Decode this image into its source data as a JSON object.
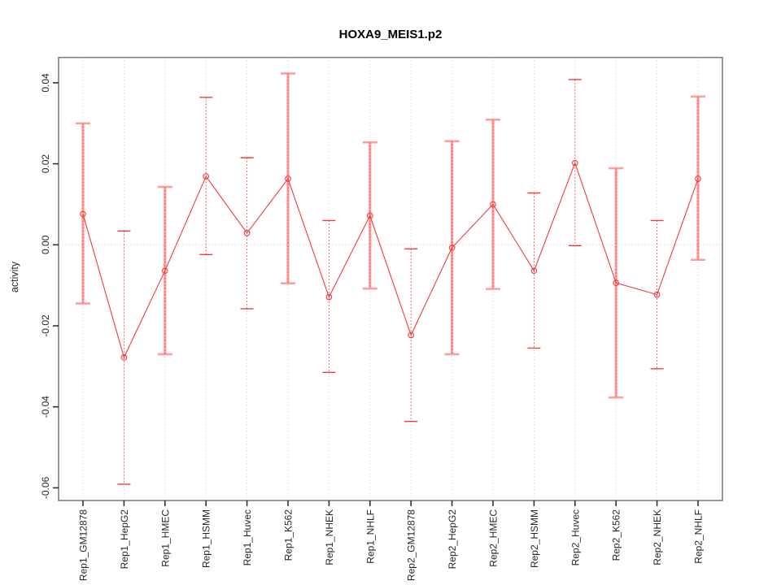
{
  "title": "HOXA9_MEIS1.p2",
  "colors": {
    "series_red": "#f23b3b",
    "pale_bar": "#ff9e9e",
    "grid": "#cbcbcb",
    "frame": "#7f7f7f",
    "tick": "#333333",
    "text": "#262626",
    "title_text": "#000000",
    "background": "#ffffff"
  },
  "chart_data": {
    "type": "line",
    "title": "HOXA9_MEIS1.p2",
    "xlabel": "",
    "ylabel": "activity",
    "legend": "none",
    "grid": "vertical dotted gridlines at each category; dotted horizontal line at y=0",
    "point_style": "open red circles connected by red line, with error bars",
    "categories": [
      "Rep1_GM12878",
      "Rep1_HepG2",
      "Rep1_HMEC",
      "Rep1_HSMM",
      "Rep1_Huvec",
      "Rep1_K562",
      "Rep1_NHEK",
      "Rep1_NHLF",
      "Rep2_GM12878",
      "Rep2_HepG2",
      "Rep2_HMEC",
      "Rep2_HSMM",
      "Rep2_Huvec",
      "Rep2_K562",
      "Rep2_NHEK",
      "Rep2_NHLF"
    ],
    "series": [
      {
        "name": "activity",
        "values": [
          0.0076,
          -0.0278,
          -0.0064,
          0.0169,
          0.0029,
          0.0163,
          -0.0129,
          0.0072,
          -0.0223,
          -0.0007,
          0.01,
          -0.0064,
          0.0202,
          -0.0094,
          -0.0123,
          0.0163
        ]
      }
    ],
    "error_low": [
      -0.0145,
      -0.0591,
      -0.027,
      -0.0024,
      -0.0158,
      -0.0095,
      -0.0315,
      -0.0108,
      -0.0436,
      -0.027,
      -0.0109,
      -0.0255,
      -0.0002,
      -0.0377,
      -0.0306,
      -0.0037
    ],
    "error_high": [
      0.03,
      0.0034,
      0.0143,
      0.0364,
      0.0215,
      0.0423,
      0.006,
      0.0253,
      -0.001,
      0.0256,
      0.0309,
      0.0128,
      0.0408,
      0.0189,
      0.006,
      0.0366
    ],
    "pale_thick_bar": [
      true,
      false,
      true,
      false,
      false,
      true,
      false,
      true,
      false,
      true,
      true,
      false,
      false,
      true,
      false,
      true
    ],
    "yticks": [
      0.04,
      0.02,
      0.0,
      -0.02,
      -0.04,
      -0.06
    ],
    "ytick_labels": [
      "0.04",
      "0.02",
      "0.00",
      "-0.02",
      "-0.04",
      "-0.06"
    ],
    "ylim": [
      -0.063,
      0.046
    ],
    "zero_line": 0.0
  }
}
